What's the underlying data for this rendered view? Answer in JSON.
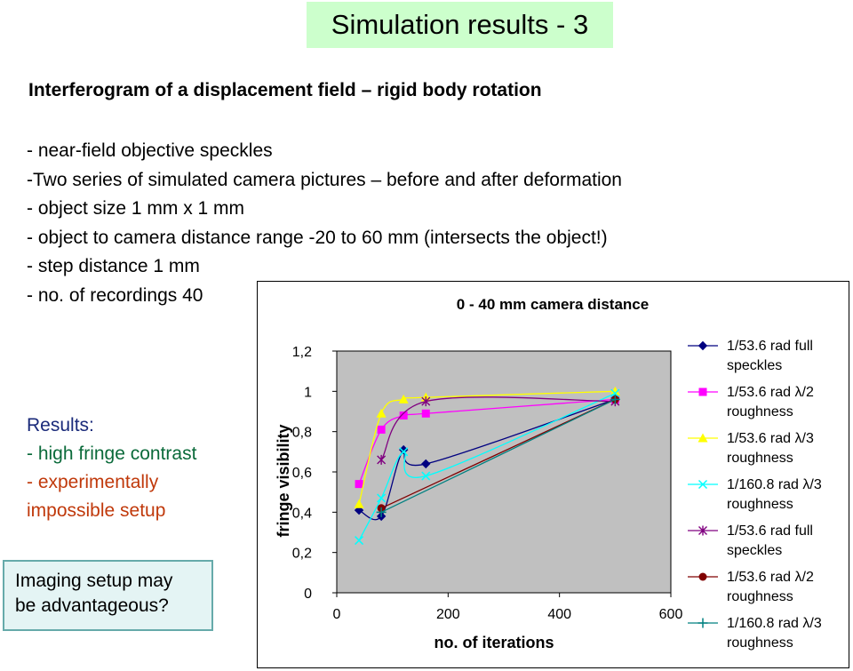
{
  "slide": {
    "title": "Simulation results - 3",
    "subtitle": "Interferogram of a displacement field – rigid body rotation",
    "bullets": [
      "- near-field objective speckles",
      "-Two series of simulated camera pictures – before and after deformation",
      "- object size 1 mm x 1 mm",
      "- object to camera distance range -20 to 60 mm (intersects the object!)",
      "- step distance 1 mm",
      "- no. of recordings 40"
    ],
    "results_heading": "Results:",
    "results_items": [
      "- high fringe contrast",
      "- experimentally",
      "impossible setup"
    ],
    "imaging_note_line1": "Imaging setup may",
    "imaging_note_line2": "be advantageous?",
    "colors": {
      "title_bg": "#ccffcc",
      "results_heading": "#1a2a7a",
      "results_green": "#0a6a3a",
      "results_red": "#c0390b",
      "plot_area": "#c0c0c0"
    }
  },
  "chart_data": {
    "type": "line",
    "title": "0 - 40 mm camera distance",
    "xlabel": "no. of iterations",
    "ylabel": "fringe visibility",
    "xlim": [
      0,
      600
    ],
    "ylim": [
      0,
      1.2
    ],
    "xticks": [
      "0",
      "200",
      "400",
      "600"
    ],
    "xtick_values": [
      0,
      200,
      400,
      600
    ],
    "yticks": [
      "0",
      "0,2",
      "0,4",
      "0,6",
      "0,8",
      "1",
      "1,2"
    ],
    "ytick_values": [
      0,
      0.2,
      0.4,
      0.6,
      0.8,
      1.0,
      1.2
    ],
    "grid": false,
    "legend_position": "right",
    "series": [
      {
        "name": "1/53.6 rad full speckles",
        "legend_lines": [
          "1/53.6 rad full",
          "speckles"
        ],
        "color": "#000080",
        "marker": "diamond",
        "x": [
          40,
          80,
          120,
          160,
          500
        ],
        "y": [
          0.41,
          0.38,
          0.71,
          0.64,
          0.96
        ]
      },
      {
        "name": "1/53.6 rad λ/2 roughness",
        "legend_lines": [
          "1/53.6 rad λ/2",
          "roughness"
        ],
        "color": "#ff00ff",
        "marker": "square",
        "x": [
          40,
          80,
          120,
          160,
          500
        ],
        "y": [
          0.54,
          0.81,
          0.88,
          0.89,
          0.96
        ]
      },
      {
        "name": "1/53.6 rad λ/3 roughness",
        "legend_lines": [
          "1/53.6 rad λ/3",
          "roughness"
        ],
        "color": "#ffff00",
        "marker": "triangle",
        "x": [
          40,
          80,
          120,
          160,
          500
        ],
        "y": [
          0.44,
          0.89,
          0.96,
          0.97,
          1.0
        ]
      },
      {
        "name": "1/160.8 rad λ/3 roughness",
        "legend_lines": [
          "1/160.8 rad λ/3",
          "roughness"
        ],
        "color": "#00ffff",
        "marker": "x",
        "x": [
          40,
          80,
          120,
          160,
          500
        ],
        "y": [
          0.26,
          0.47,
          0.7,
          0.58,
          0.99
        ]
      },
      {
        "name": "1/53.6 rad full speckles",
        "legend_lines": [
          "1/53.6 rad full",
          "speckles"
        ],
        "color": "#800080",
        "marker": "star",
        "x": [
          80,
          160,
          500
        ],
        "y": [
          0.66,
          0.95,
          0.95
        ]
      },
      {
        "name": "1/53.6 rad λ/2 roughness",
        "legend_lines": [
          "1/53.6 rad λ/2",
          "roughness"
        ],
        "color": "#800000",
        "marker": "circle",
        "x": [
          80,
          500
        ],
        "y": [
          0.42,
          0.96
        ]
      },
      {
        "name": "1/160.8 rad λ/3 roughness",
        "legend_lines": [
          "1/160.8 rad λ/3",
          "roughness"
        ],
        "color": "#008080",
        "marker": "plus",
        "x": [
          80,
          500
        ],
        "y": [
          0.4,
          0.96
        ]
      }
    ]
  }
}
